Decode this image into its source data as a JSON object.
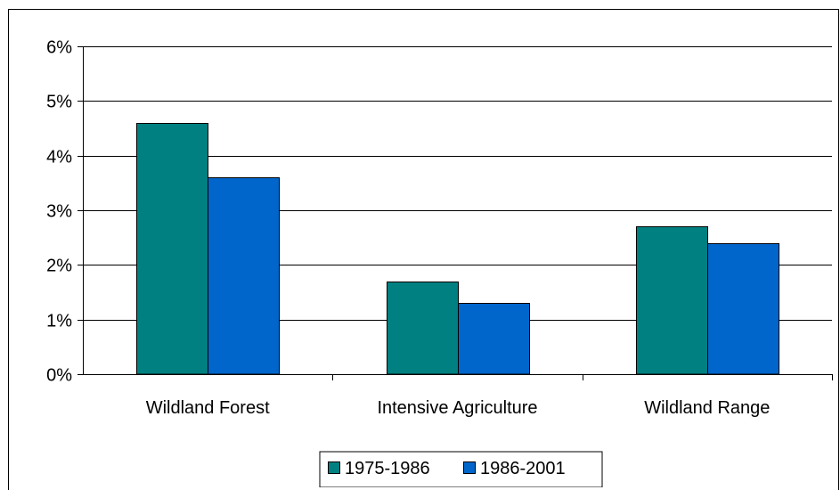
{
  "chart_data": {
    "type": "bar",
    "title": "",
    "xlabel": "",
    "ylabel": "",
    "categories": [
      "Wildland Forest",
      "Intensive Agriculture",
      "Wildland Range"
    ],
    "series": [
      {
        "name": "1975-1986",
        "values": [
          4.6,
          1.7,
          2.7
        ],
        "color": "#008080"
      },
      {
        "name": "1986-2001",
        "values": [
          3.6,
          1.3,
          2.4
        ],
        "color": "#0066cc"
      }
    ],
    "ylim": [
      0,
      6
    ],
    "yticks": [
      0,
      1,
      2,
      3,
      4,
      5,
      6
    ],
    "ytick_labels": [
      "0%",
      "1%",
      "2%",
      "3%",
      "4%",
      "5%",
      "6%"
    ],
    "grid": true,
    "legend_position": "bottom"
  }
}
